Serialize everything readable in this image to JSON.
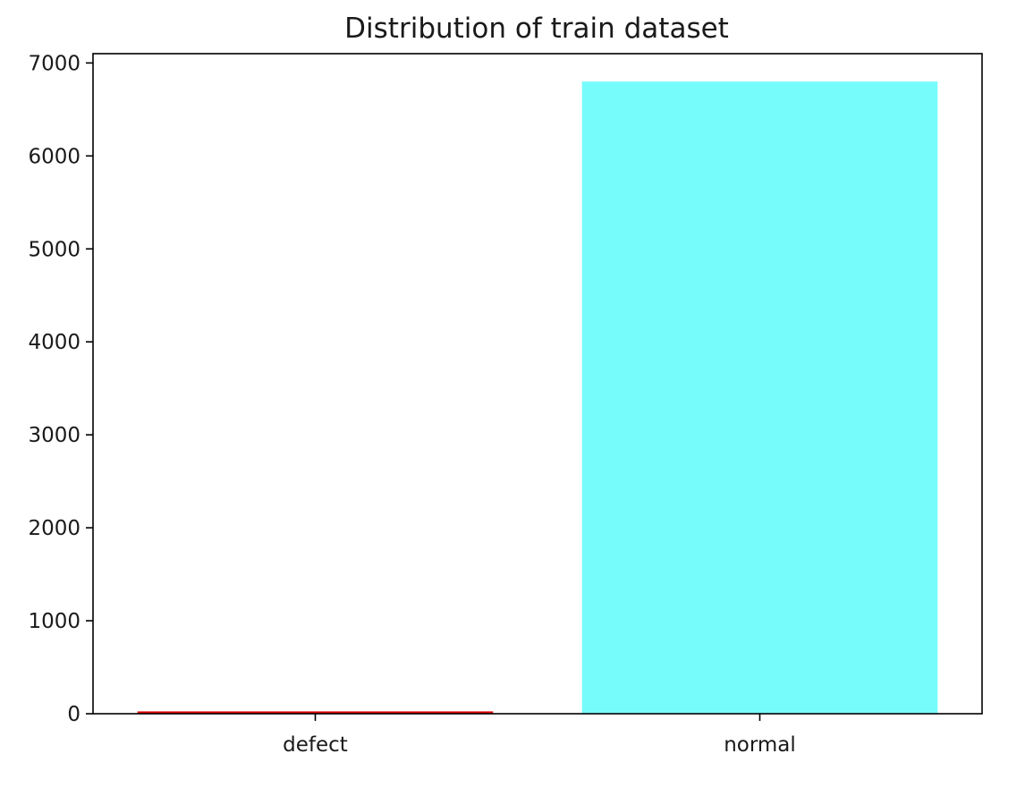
{
  "chart_data": {
    "type": "bar",
    "title": "Distribution of train dataset",
    "xlabel": "",
    "ylabel": "",
    "categories": [
      "defect",
      "normal"
    ],
    "values": [
      25,
      6800
    ],
    "colors": [
      "#e60000",
      "#77fcfc"
    ],
    "ylim": [
      0,
      7100
    ],
    "yticks": [
      0,
      1000,
      2000,
      3000,
      4000,
      5000,
      6000,
      7000
    ],
    "grid": false,
    "legend": "none"
  }
}
